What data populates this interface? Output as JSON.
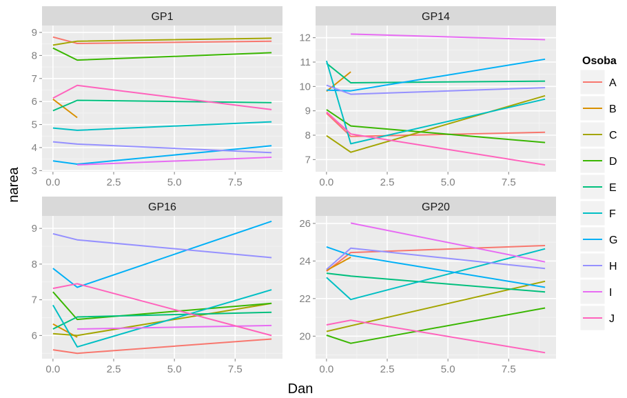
{
  "chart_data": {
    "type": "line",
    "xlabel": "Dan",
    "ylabel": "narea",
    "legend": {
      "title": "Osoba",
      "placement": "right",
      "entries": [
        "A",
        "B",
        "C",
        "D",
        "E",
        "F",
        "G",
        "H",
        "I",
        "J"
      ]
    },
    "colors": {
      "A": "#F8766D",
      "B": "#D89000",
      "C": "#A3A500",
      "D": "#39B600",
      "E": "#00BF7D",
      "F": "#00BFC4",
      "G": "#00B0F6",
      "H": "#9590FF",
      "I": "#E76BF3",
      "J": "#FF62BC"
    },
    "grid": true,
    "panel_background": "#EBEBEB",
    "strip_background": "#D9D9D9",
    "x_ticks": [
      0,
      2.5,
      5,
      7.5
    ],
    "x_tick_labels": [
      "0.0",
      "2.5",
      "5.0",
      "7.5"
    ],
    "xlim": [
      -0.45,
      9.45
    ],
    "panels": [
      {
        "title": "GP1",
        "ylim": [
          2.95,
          9.3
        ],
        "y_ticks": [
          3,
          4,
          5,
          6,
          7,
          8,
          9
        ],
        "y_tick_labels": [
          "3",
          "4",
          "5",
          "6",
          "7",
          "8",
          "9"
        ],
        "series": [
          {
            "name": "A",
            "points": [
              [
                0,
                8.8
              ],
              [
                1,
                8.52
              ],
              [
                9,
                8.62
              ]
            ]
          },
          {
            "name": "B",
            "points": [
              [
                0,
                6.1
              ],
              [
                1,
                5.3
              ]
            ]
          },
          {
            "name": "C",
            "points": [
              [
                0,
                8.45
              ],
              [
                1,
                8.62
              ],
              [
                9,
                8.75
              ]
            ]
          },
          {
            "name": "D",
            "points": [
              [
                0,
                8.32
              ],
              [
                1,
                7.8
              ],
              [
                9,
                8.12
              ]
            ]
          },
          {
            "name": "E",
            "points": [
              [
                0,
                5.6
              ],
              [
                1,
                6.05
              ],
              [
                9,
                5.95
              ]
            ]
          },
          {
            "name": "F",
            "points": [
              [
                0,
                4.85
              ],
              [
                1,
                4.75
              ],
              [
                9,
                5.12
              ]
            ]
          },
          {
            "name": "G",
            "points": [
              [
                0,
                3.42
              ],
              [
                1,
                3.28
              ],
              [
                9,
                4.08
              ]
            ]
          },
          {
            "name": "H",
            "points": [
              [
                0,
                4.25
              ],
              [
                1,
                4.15
              ],
              [
                9,
                3.78
              ]
            ]
          },
          {
            "name": "I",
            "points": [
              [
                1,
                3.25
              ],
              [
                9,
                3.58
              ]
            ]
          },
          {
            "name": "J",
            "points": [
              [
                0,
                6.15
              ],
              [
                1,
                6.7
              ],
              [
                9,
                5.65
              ]
            ]
          }
        ]
      },
      {
        "title": "GP14",
        "ylim": [
          6.5,
          12.5
        ],
        "y_ticks": [
          7,
          8,
          9,
          10,
          11,
          12
        ],
        "y_tick_labels": [
          "7",
          "8",
          "9",
          "10",
          "11",
          "12"
        ],
        "series": [
          {
            "name": "A",
            "points": [
              [
                0,
                8.9
              ],
              [
                1,
                7.95
              ],
              [
                9,
                8.12
              ]
            ]
          },
          {
            "name": "B",
            "points": [
              [
                0,
                9.8
              ],
              [
                1,
                10.6
              ]
            ]
          },
          {
            "name": "C",
            "points": [
              [
                0,
                7.98
              ],
              [
                1,
                7.3
              ],
              [
                9,
                9.62
              ]
            ]
          },
          {
            "name": "D",
            "points": [
              [
                0,
                9.05
              ],
              [
                1,
                8.38
              ],
              [
                9,
                7.7
              ]
            ]
          },
          {
            "name": "E",
            "points": [
              [
                0,
                10.95
              ],
              [
                1,
                10.15
              ],
              [
                9,
                10.22
              ]
            ]
          },
          {
            "name": "F",
            "points": [
              [
                0,
                11.05
              ],
              [
                1,
                7.65
              ],
              [
                9,
                9.48
              ]
            ]
          },
          {
            "name": "G",
            "points": [
              [
                0,
                9.85
              ],
              [
                1,
                9.82
              ],
              [
                9,
                11.12
              ]
            ]
          },
          {
            "name": "H",
            "points": [
              [
                0,
                10.05
              ],
              [
                1,
                9.68
              ],
              [
                9,
                9.95
              ]
            ]
          },
          {
            "name": "I",
            "points": [
              [
                1,
                12.15
              ],
              [
                9,
                11.92
              ]
            ]
          },
          {
            "name": "J",
            "points": [
              [
                0,
                8.95
              ],
              [
                1,
                8.05
              ],
              [
                9,
                6.78
              ]
            ]
          }
        ]
      },
      {
        "title": "GP16",
        "ylim": [
          5.35,
          9.35
        ],
        "y_ticks": [
          6,
          7,
          8,
          9
        ],
        "y_tick_labels": [
          "6",
          "7",
          "8",
          "9"
        ],
        "series": [
          {
            "name": "A",
            "points": [
              [
                0,
                5.6
              ],
              [
                1,
                5.5
              ],
              [
                9,
                5.9
              ]
            ]
          },
          {
            "name": "B",
            "points": [
              [
                0,
                6.32
              ],
              [
                1,
                5.95
              ]
            ]
          },
          {
            "name": "C",
            "points": [
              [
                0,
                6.05
              ],
              [
                1,
                6.0
              ],
              [
                9,
                6.9
              ]
            ]
          },
          {
            "name": "D",
            "points": [
              [
                0,
                7.22
              ],
              [
                1,
                6.45
              ],
              [
                9,
                6.9
              ]
            ]
          },
          {
            "name": "E",
            "points": [
              [
                0,
                6.18
              ],
              [
                1,
                6.52
              ],
              [
                9,
                6.65
              ]
            ]
          },
          {
            "name": "F",
            "points": [
              [
                0,
                6.85
              ],
              [
                1,
                5.68
              ],
              [
                9,
                7.28
              ]
            ]
          },
          {
            "name": "G",
            "points": [
              [
                0,
                7.88
              ],
              [
                1,
                7.35
              ],
              [
                9,
                9.2
              ]
            ]
          },
          {
            "name": "H",
            "points": [
              [
                0,
                8.85
              ],
              [
                1,
                8.68
              ],
              [
                9,
                8.18
              ]
            ]
          },
          {
            "name": "I",
            "points": [
              [
                1,
                6.18
              ],
              [
                9,
                6.28
              ]
            ]
          },
          {
            "name": "J",
            "points": [
              [
                0,
                7.32
              ],
              [
                1,
                7.45
              ],
              [
                9,
                6.0
              ]
            ]
          }
        ]
      },
      {
        "title": "GP20",
        "ylim": [
          18.8,
          26.4
        ],
        "y_ticks": [
          20,
          22,
          24,
          26
        ],
        "y_tick_labels": [
          "20",
          "22",
          "24",
          "26"
        ],
        "series": [
          {
            "name": "A",
            "points": [
              [
                0,
                23.45
              ],
              [
                1,
                24.45
              ],
              [
                9,
                24.82
              ]
            ]
          },
          {
            "name": "B",
            "points": [
              [
                0,
                23.5
              ],
              [
                1,
                24.2
              ]
            ]
          },
          {
            "name": "C",
            "points": [
              [
                0,
                20.25
              ],
              [
                1,
                20.55
              ],
              [
                9,
                22.92
              ]
            ]
          },
          {
            "name": "D",
            "points": [
              [
                0,
                20.05
              ],
              [
                1,
                19.62
              ],
              [
                9,
                21.5
              ]
            ]
          },
          {
            "name": "E",
            "points": [
              [
                0,
                23.35
              ],
              [
                1,
                23.2
              ],
              [
                9,
                22.35
              ]
            ]
          },
          {
            "name": "F",
            "points": [
              [
                0,
                23.12
              ],
              [
                1,
                21.95
              ],
              [
                9,
                24.65
              ]
            ]
          },
          {
            "name": "G",
            "points": [
              [
                0,
                24.75
              ],
              [
                1,
                24.3
              ],
              [
                9,
                22.6
              ]
            ]
          },
          {
            "name": "H",
            "points": [
              [
                0,
                23.55
              ],
              [
                1,
                24.68
              ],
              [
                9,
                23.6
              ]
            ]
          },
          {
            "name": "I",
            "points": [
              [
                1,
                26.02
              ],
              [
                9,
                23.95
              ]
            ]
          },
          {
            "name": "J",
            "points": [
              [
                0,
                20.6
              ],
              [
                1,
                20.85
              ],
              [
                9,
                19.12
              ]
            ]
          }
        ]
      }
    ]
  }
}
